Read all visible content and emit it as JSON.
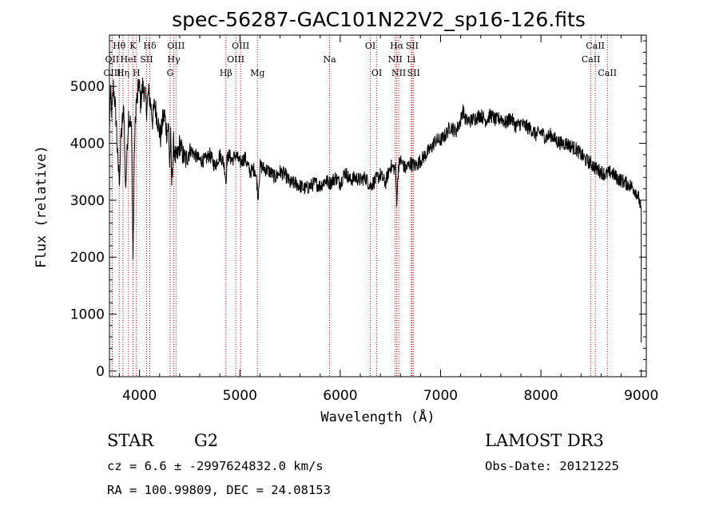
{
  "chart_data": {
    "type": "line",
    "title": "spec-56287-GAC101N22V2_sp16-126.fits",
    "xlabel": "Wavelength (Å)",
    "ylabel": "Flux (relative)",
    "xlim": [
      3700,
      9050
    ],
    "ylim": [
      -100,
      5900
    ],
    "xticks": [
      4000,
      5000,
      6000,
      7000,
      8000,
      9000
    ],
    "yticks": [
      0,
      1000,
      2000,
      3000,
      4000,
      5000
    ],
    "grid": false,
    "series": [
      {
        "x": [
          3700,
          3710,
          3725,
          3740,
          3755,
          3770,
          3785,
          3800,
          3815,
          3830,
          3845,
          3860,
          3875,
          3890,
          3905,
          3920,
          3935,
          3950,
          3965,
          3980,
          3995,
          4010,
          4030,
          4050,
          4070,
          4090,
          4110,
          4130,
          4150,
          4170,
          4190,
          4210,
          4230,
          4250,
          4270,
          4290,
          4300,
          4310,
          4320,
          4340,
          4360,
          4380,
          4400,
          4430,
          4460,
          4500,
          4550,
          4600,
          4650,
          4700,
          4750,
          4800,
          4830,
          4850,
          4861,
          4870,
          4890,
          4920,
          4960,
          5000,
          5050,
          5100,
          5150,
          5170,
          5180,
          5190,
          5200,
          5250,
          5300,
          5350,
          5400,
          5450,
          5500,
          5550,
          5600,
          5650,
          5700,
          5750,
          5800,
          5850,
          5900,
          5950,
          6000,
          6050,
          6100,
          6150,
          6200,
          6250,
          6300,
          6350,
          6400,
          6450,
          6500,
          6550,
          6563,
          6580,
          6600,
          6650,
          6700,
          6750,
          6800,
          6850,
          6900,
          6950,
          7000,
          7050,
          7100,
          7150,
          7200,
          7220,
          7250,
          7300,
          7350,
          7400,
          7450,
          7500,
          7550,
          7600,
          7650,
          7700,
          7750,
          7800,
          7850,
          7900,
          7950,
          8000,
          8050,
          8100,
          8150,
          8200,
          8250,
          8300,
          8350,
          8400,
          8450,
          8500,
          8550,
          8600,
          8650,
          8700,
          8750,
          8800,
          8850,
          8900,
          8950,
          8980,
          9000
        ],
        "values": [
          4200,
          4900,
          4500,
          5000,
          4700,
          4300,
          3600,
          3400,
          4100,
          4400,
          4600,
          3200,
          3800,
          4500,
          4400,
          4200,
          1950,
          4000,
          4700,
          4800,
          5100,
          4700,
          5000,
          4900,
          4600,
          4900,
          4700,
          4400,
          4700,
          4500,
          4300,
          4100,
          4400,
          4500,
          4200,
          4300,
          3600,
          4100,
          3300,
          4000,
          3700,
          3800,
          4000,
          3800,
          3700,
          3900,
          3800,
          3700,
          3700,
          3800,
          3600,
          3800,
          3700,
          3550,
          3300,
          3700,
          3800,
          3700,
          3800,
          3650,
          3750,
          3500,
          3550,
          3300,
          3050,
          3300,
          3600,
          3550,
          3500,
          3400,
          3500,
          3450,
          3300,
          3300,
          3250,
          3200,
          3250,
          3300,
          3250,
          3350,
          3300,
          3400,
          3300,
          3500,
          3350,
          3400,
          3350,
          3400,
          3250,
          3350,
          3450,
          3300,
          3600,
          3550,
          3000,
          3600,
          3700,
          3550,
          3650,
          3600,
          3700,
          3800,
          3900,
          4050,
          4050,
          4150,
          4300,
          4200,
          4400,
          4600,
          4400,
          4400,
          4450,
          4500,
          4400,
          4500,
          4400,
          4450,
          4350,
          4450,
          4300,
          4350,
          4300,
          4250,
          4150,
          4200,
          4100,
          4150,
          4050,
          4000,
          4000,
          3950,
          3900,
          3800,
          3700,
          3650,
          3550,
          3500,
          3450,
          3500,
          3400,
          3350,
          3300,
          3250,
          3150,
          3000,
          2800
        ]
      }
    ],
    "spectral_lines": [
      {
        "label": "Hθ",
        "x": 3797,
        "row": 0
      },
      {
        "label": "OII",
        "x": 3727,
        "row": 1
      },
      {
        "label": "OIII",
        "x": 3727,
        "row": 2
      },
      {
        "label": "HeI",
        "x": 3889,
        "row": 1
      },
      {
        "label": "Hη",
        "x": 3835,
        "row": 2
      },
      {
        "label": "K",
        "x": 3934,
        "row": 0
      },
      {
        "label": "SII",
        "x": 4070,
        "row": 1
      },
      {
        "label": "H",
        "x": 3969,
        "row": 2
      },
      {
        "label": "Hδ",
        "x": 4102,
        "row": 0
      },
      {
        "label": "OIII",
        "x": 4363,
        "row": 0
      },
      {
        "label": "Hγ",
        "x": 4341,
        "row": 1
      },
      {
        "label": "G",
        "x": 4305,
        "row": 2
      },
      {
        "label": "Hβ",
        "x": 4861,
        "row": 2
      },
      {
        "label": "OIII",
        "x": 5007,
        "row": 0
      },
      {
        "label": "OIII",
        "x": 4959,
        "row": 1
      },
      {
        "label": "Mg",
        "x": 5175,
        "row": 2
      },
      {
        "label": "Na",
        "x": 5894,
        "row": 1
      },
      {
        "label": "OI",
        "x": 6300,
        "row": 0
      },
      {
        "label": "OI",
        "x": 6364,
        "row": 2
      },
      {
        "label": "Hα",
        "x": 6563,
        "row": 0
      },
      {
        "label": "SII",
        "x": 6716,
        "row": 0
      },
      {
        "label": "NII",
        "x": 6548,
        "row": 1
      },
      {
        "label": "Li",
        "x": 6708,
        "row": 1
      },
      {
        "label": "NII",
        "x": 6583,
        "row": 2
      },
      {
        "label": "SII",
        "x": 6731,
        "row": 2
      },
      {
        "label": "CaII",
        "x": 8542,
        "row": 0
      },
      {
        "label": "CaII",
        "x": 8498,
        "row": 1
      },
      {
        "label": "CaII",
        "x": 8662,
        "row": 2
      }
    ]
  },
  "info": {
    "class": "STAR",
    "subclass": "G2",
    "survey": "LAMOST DR3",
    "cz": "cz = 6.6 ± -2997624832.0 km/s",
    "obs_date": "Obs-Date: 20121225",
    "radec": "RA = 100.99809, DEC =  24.08153"
  },
  "colors": {
    "line": "#000000",
    "marker": "#cc0000"
  }
}
